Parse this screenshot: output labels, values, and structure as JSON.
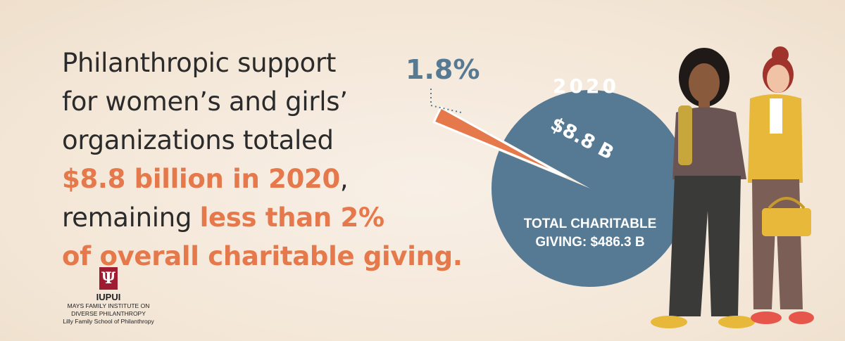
{
  "headline": {
    "line1": "Philanthropic support",
    "line2": "for women’s and girls’",
    "line3": "organizations totaled",
    "line4_highlight": "$8.8 billion in 2020",
    "line4_tail": ",",
    "line5_lead": "remaining ",
    "line5_highlight": "less than 2%",
    "line6_highlight": "of overall charitable giving."
  },
  "logo": {
    "mark": "Ψ",
    "name": "IUPUI",
    "line1": "MAYS FAMILY INSTITUTE ON",
    "line2": "DIVERSE PHILANTHROPY",
    "line3": "Lilly Family School of Philanthropy"
  },
  "colors": {
    "highlight": "#e5794b",
    "pie_total": "#567a93",
    "pie_slice": "#e5794b",
    "text_dark": "#2b2b2b",
    "logo": "#9e1b32"
  },
  "chart_data": {
    "type": "pie",
    "year_label": "2020",
    "total_label": "TOTAL CHARITABLE",
    "total_label2": "GIVING: $486.3 B",
    "total_value": 486.3,
    "slices": [
      {
        "label": "$8.8 B",
        "value": 8.8,
        "percent_label": "1.8%",
        "percent": 1.8
      },
      {
        "label": "",
        "value": 477.5
      }
    ]
  }
}
